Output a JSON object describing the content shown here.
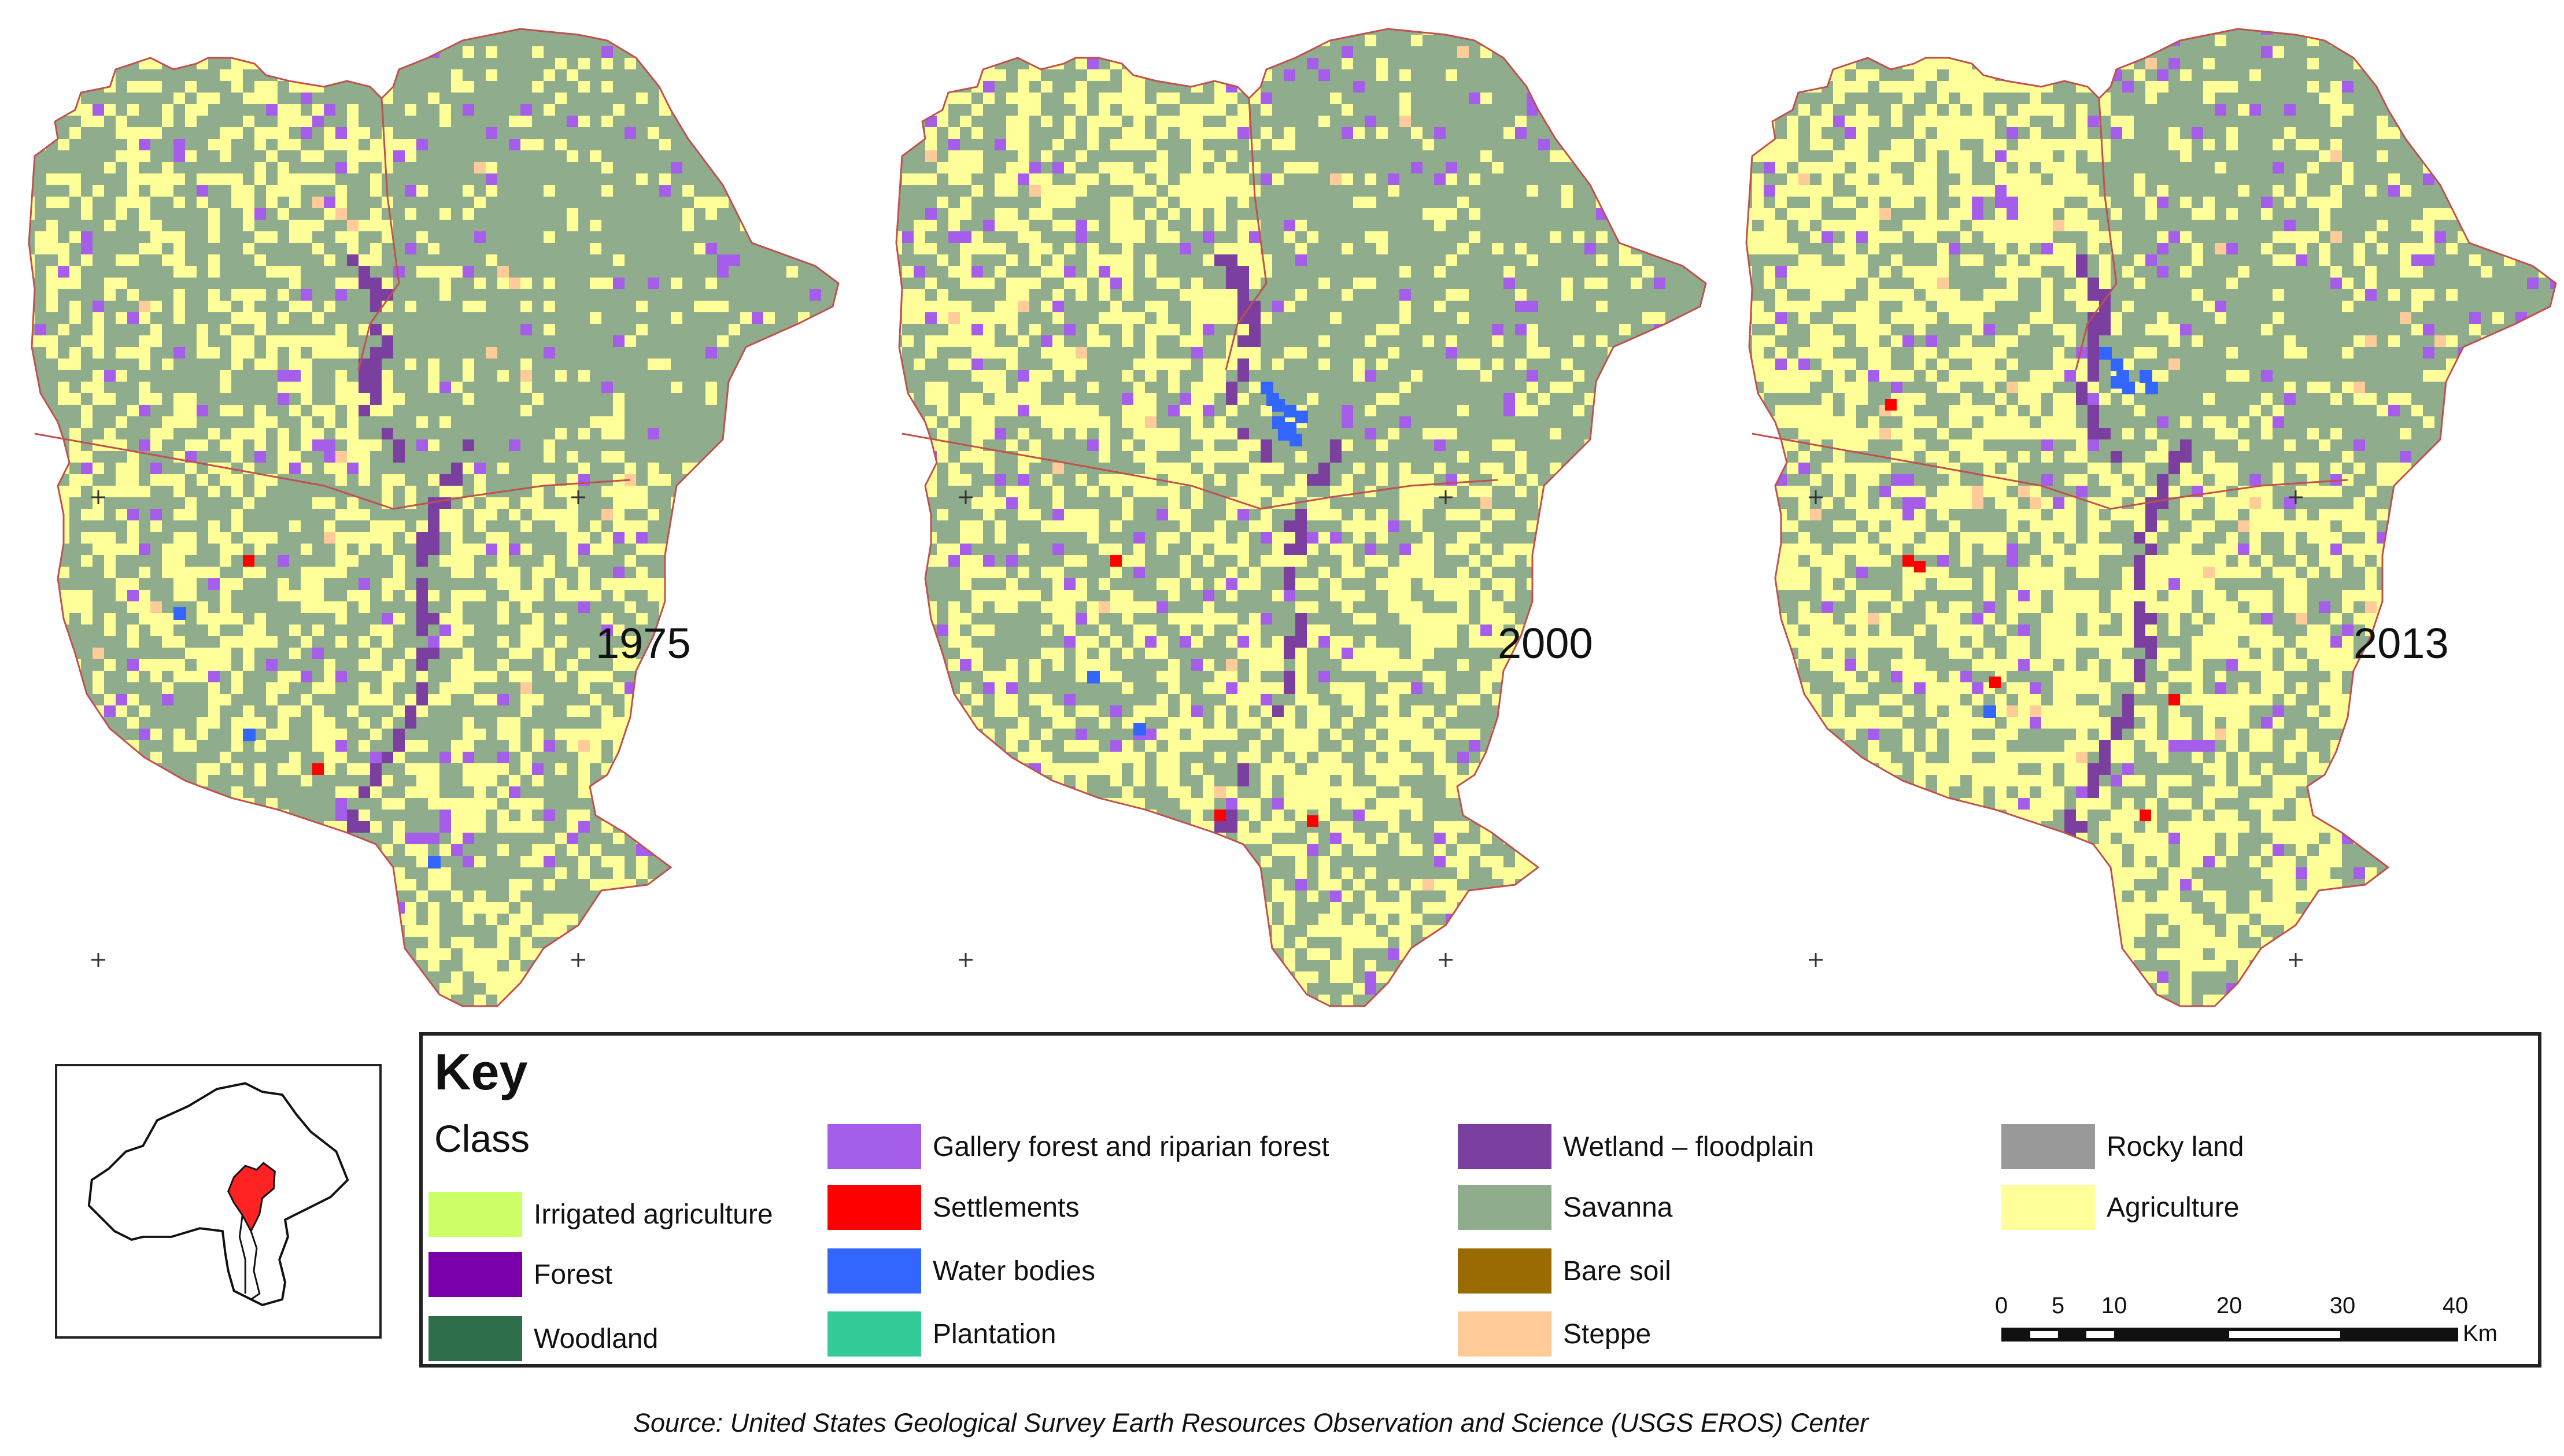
{
  "maps": [
    {
      "year": "1975"
    },
    {
      "year": "2000"
    },
    {
      "year": "2013"
    }
  ],
  "legend": {
    "title": "Key",
    "class_title": "Class",
    "items": [
      {
        "label": "Irrigated agriculture",
        "color": "#ccff66"
      },
      {
        "label": "Forest",
        "color": "#7a00aa"
      },
      {
        "label": "Woodland",
        "color": "#2e6e4a"
      },
      {
        "label": "Gallery forest and riparian forest",
        "color": "#a45eea"
      },
      {
        "label": "Settlements",
        "color": "#ff0000"
      },
      {
        "label": "Water bodies",
        "color": "#3366ff"
      },
      {
        "label": "Plantation",
        "color": "#33cc99"
      },
      {
        "label": "Wetland – floodplain",
        "color": "#7b3fa0"
      },
      {
        "label": "Savanna",
        "color": "#8fac8c"
      },
      {
        "label": "Bare soil",
        "color": "#9a6b00"
      },
      {
        "label": "Steppe",
        "color": "#ffcc99"
      },
      {
        "label": "Rocky land",
        "color": "#999999"
      },
      {
        "label": "Agriculture",
        "color": "#ffff99"
      }
    ]
  },
  "scale": {
    "ticks": [
      "0",
      "5",
      "10",
      "20",
      "30",
      "40"
    ],
    "unit": "Km"
  },
  "source": "Source: United States Geological Survey Earth Resources Observation and Science (USGS EROS) Center"
}
